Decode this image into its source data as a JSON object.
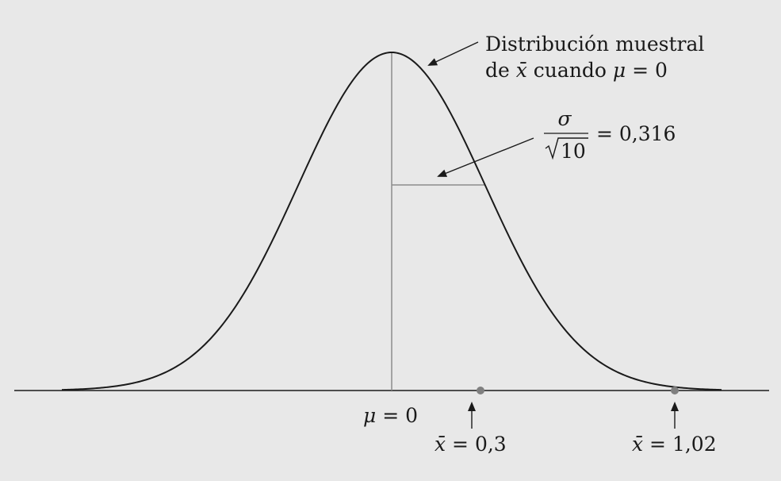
{
  "annotations": {
    "curve_label_line1": "Distribución muestral",
    "curve_label_line2_prefix": "de ",
    "curve_label_line2_xbar": "x̄",
    "curve_label_line2_middle": " cuando ",
    "curve_label_line2_mu": "μ",
    "curve_label_line2_suffix": " = 0",
    "sd_numerator": "σ",
    "sd_denominator": "10",
    "sd_value": "= 0,316"
  },
  "axis_labels": {
    "mu_symbol": "μ",
    "mu_value": " = 0",
    "xbar1_symbol": "x̄",
    "xbar1_value": " = 0,3",
    "xbar2_symbol": "x̄",
    "xbar2_value": " = 1,02"
  },
  "distribution": {
    "mean": 0,
    "sd": 0.316,
    "marked_points": [
      0.3,
      1.02
    ]
  },
  "colors": {
    "background": "#e8e8e8",
    "curve": "#1a1a1a",
    "guide_lines": "#8c8c8c",
    "points": "#7f7f7f"
  }
}
